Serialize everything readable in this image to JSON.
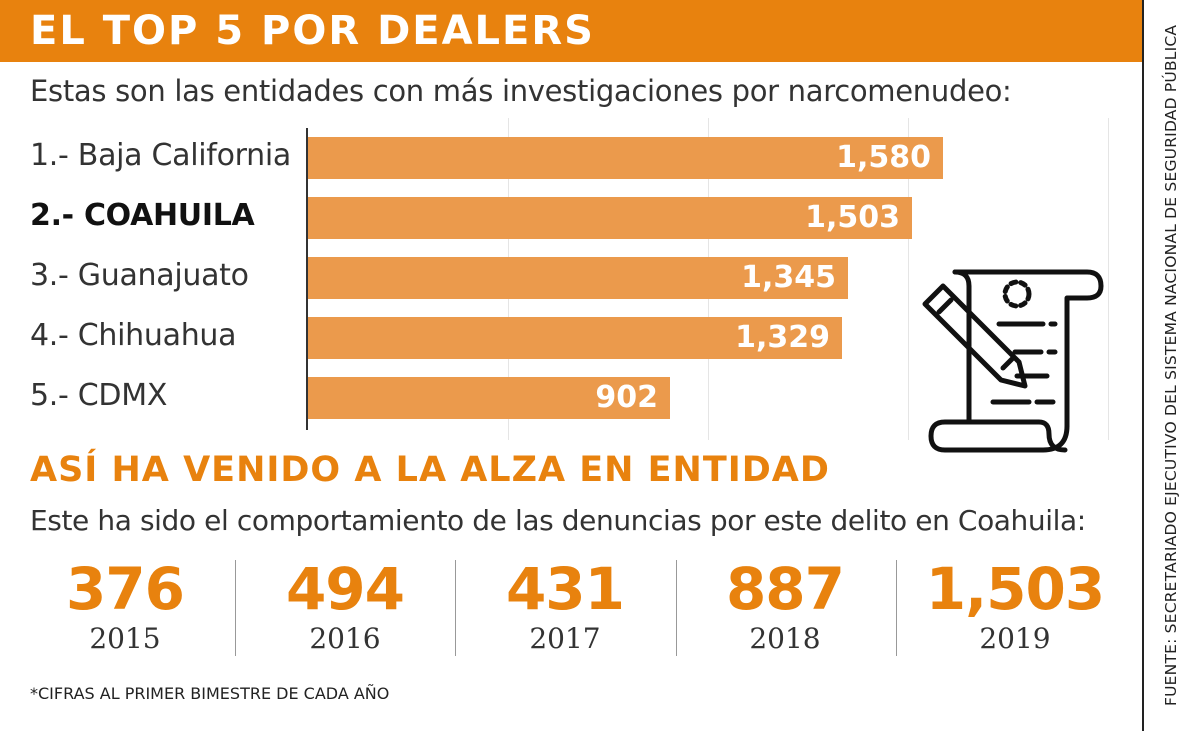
{
  "header": {
    "title": "EL TOP 5 POR DEALERS"
  },
  "subtitle": "Estas son las entidades con más investigaciones por narcomenudeo:",
  "chart_data": {
    "type": "bar",
    "orientation": "horizontal",
    "categories": [
      "1.- Baja California",
      "2.- COAHUILA",
      "3.- Guanajuato",
      "4.- Chihuahua",
      "5.- CDMX"
    ],
    "values": [
      1580,
      1503,
      1345,
      1329,
      902
    ],
    "value_labels": [
      "1,580",
      "1,503",
      "1,345",
      "1,329",
      "902"
    ],
    "highlight_category": "2.- COAHUILA",
    "bar_color": "#eb9a4c",
    "grid": true
  },
  "section2": {
    "title": "ASÍ HA VENIDO A LA ALZA EN ENTIDAD",
    "subtitle": "Este ha sido el comportamiento de las denuncias por este delito en Coahuila:",
    "years": [
      {
        "value": "376",
        "year": "2015"
      },
      {
        "value": "494",
        "year": "2016"
      },
      {
        "value": "431",
        "year": "2017"
      },
      {
        "value": "887",
        "year": "2018"
      },
      {
        "value": "1,503",
        "year": "2019"
      }
    ]
  },
  "footnote": "*CIFRAS AL PRIMER BIMESTRE DE CADA AÑO",
  "source": "FUENTE: SECRETARIADO EJECUTIVO DEL SISTEMA NACIONAL DE SEGURIDAD PÚBLICA",
  "icon": "document-with-pen-icon",
  "colors": {
    "accent": "#e8820e",
    "bar": "#eb9a4c",
    "text": "#333333"
  }
}
